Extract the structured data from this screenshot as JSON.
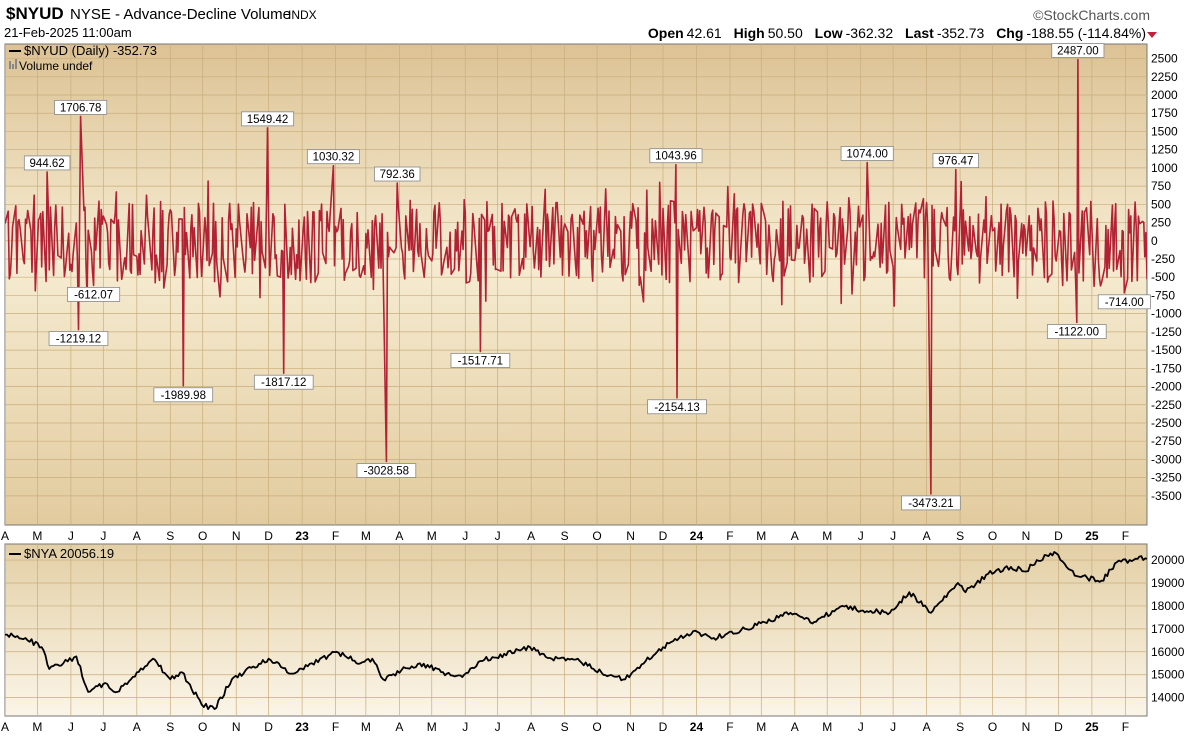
{
  "header": {
    "symbol": "$NYUD",
    "name": "NYSE - Advance-Decline Volume",
    "exchange": "INDX",
    "brand": "©StockCharts.com",
    "date": "21-Feb-2025 11:00am",
    "open_label": "Open",
    "open": "42.61",
    "high_label": "High",
    "high": "50.50",
    "low_label": "Low",
    "low": "-362.32",
    "last_label": "Last",
    "last": "-352.73",
    "chg_label": "Chg",
    "chg": "-188.55 (-114.84%)",
    "chg_color": "#c0203a"
  },
  "chart_data": [
    {
      "type": "line",
      "title": "$NYUD (Daily) -352.73",
      "subtitle": "Volume undef",
      "line_color": "#b22234",
      "ylim": [
        -3900,
        2700
      ],
      "yticks": [
        2500,
        2250,
        2000,
        1750,
        1500,
        1250,
        1000,
        750,
        500,
        250,
        0,
        -250,
        -500,
        -750,
        -1000,
        -1250,
        -1500,
        -1750,
        -2000,
        -2250,
        -2500,
        -2750,
        -3000,
        -3250,
        -3500
      ],
      "ytick_labels": [
        "2500",
        "2250",
        "2000",
        "1750",
        "1500",
        "1250",
        "1000",
        "750",
        "500",
        "250",
        "0",
        "-250",
        "-500",
        "-750",
        "-1000",
        "-1250",
        "-1500",
        "-1750",
        "-2000",
        "-2250",
        "-2500",
        "-2750",
        "-3000",
        "-3250",
        "-3500"
      ],
      "x_start": "2022-04-01",
      "x_end": "2025-02-21",
      "x_month_labels": [
        "A",
        "M",
        "J",
        "J",
        "A",
        "S",
        "O",
        "N",
        "D",
        "23",
        "F",
        "M",
        "A",
        "M",
        "J",
        "J",
        "A",
        "S",
        "O",
        "N",
        "D",
        "24",
        "F",
        "M",
        "A",
        "M",
        "J",
        "J",
        "A",
        "S",
        "O",
        "N",
        "D",
        "25",
        "F"
      ],
      "annotations": [
        {
          "date": "2022-05-10",
          "value": 944.62,
          "label": "944.62"
        },
        {
          "date": "2022-06-10",
          "value": 1706.78,
          "label": "1706.78"
        },
        {
          "date": "2022-06-08",
          "value": -1219.12,
          "label": "-1219.12"
        },
        {
          "date": "2022-06-22",
          "value": -612.07,
          "label": "-612.07"
        },
        {
          "date": "2022-09-13",
          "value": -1989.98,
          "label": "-1989.98"
        },
        {
          "date": "2022-11-30",
          "value": 1549.42,
          "label": "1549.42"
        },
        {
          "date": "2022-12-15",
          "value": -1817.12,
          "label": "-1817.12"
        },
        {
          "date": "2023-01-30",
          "value": 1030.32,
          "label": "1030.32"
        },
        {
          "date": "2023-03-20",
          "value": -3028.58,
          "label": "-3028.58"
        },
        {
          "date": "2023-03-30",
          "value": 792.36,
          "label": "792.36"
        },
        {
          "date": "2023-06-15",
          "value": -1517.71,
          "label": "-1517.71"
        },
        {
          "date": "2023-12-13",
          "value": 1043.96,
          "label": "1043.96"
        },
        {
          "date": "2023-12-14",
          "value": -2154.13,
          "label": "-2154.13"
        },
        {
          "date": "2024-06-07",
          "value": 1074.0,
          "label": "1074.00"
        },
        {
          "date": "2024-08-05",
          "value": -3473.21,
          "label": "-3473.21"
        },
        {
          "date": "2024-08-28",
          "value": 976.47,
          "label": "976.47"
        },
        {
          "date": "2024-12-18",
          "value": -1122.0,
          "label": "-1122.00"
        },
        {
          "date": "2024-12-19",
          "value": 2487.0,
          "label": "2487.00"
        },
        {
          "date": "2025-01-31",
          "value": -714.0,
          "label": "-714.00"
        }
      ]
    },
    {
      "type": "line",
      "title": "$NYA 20056.19",
      "line_color": "#000000",
      "ylim": [
        13200,
        20700
      ],
      "yticks": [
        20000,
        19000,
        18000,
        17000,
        16000,
        15000,
        14000
      ],
      "ytick_labels": [
        "20000",
        "19000",
        "18000",
        "17000",
        "16000",
        "15000",
        "14000"
      ],
      "x_start": "2022-04-01",
      "x_end": "2025-02-21",
      "x_month_labels": [
        "A",
        "M",
        "J",
        "J",
        "A",
        "S",
        "O",
        "N",
        "D",
        "23",
        "F",
        "M",
        "A",
        "M",
        "J",
        "J",
        "A",
        "S",
        "O",
        "N",
        "D",
        "24",
        "F",
        "M",
        "A",
        "M",
        "J",
        "J",
        "A",
        "S",
        "O",
        "N",
        "D",
        "25",
        "F"
      ],
      "series": [
        {
          "values": [
            {
              "x": "2022-04-01",
              "y": 16750
            },
            {
              "x": "2022-04-20",
              "y": 16600
            },
            {
              "x": "2022-05-05",
              "y": 16200
            },
            {
              "x": "2022-05-12",
              "y": 15250
            },
            {
              "x": "2022-05-25",
              "y": 15500
            },
            {
              "x": "2022-06-06",
              "y": 15800
            },
            {
              "x": "2022-06-17",
              "y": 14250
            },
            {
              "x": "2022-07-01",
              "y": 14600
            },
            {
              "x": "2022-07-14",
              "y": 14250
            },
            {
              "x": "2022-08-01",
              "y": 15100
            },
            {
              "x": "2022-08-16",
              "y": 15700
            },
            {
              "x": "2022-09-01",
              "y": 14800
            },
            {
              "x": "2022-09-12",
              "y": 15100
            },
            {
              "x": "2022-09-30",
              "y": 13700
            },
            {
              "x": "2022-10-12",
              "y": 13500
            },
            {
              "x": "2022-10-28",
              "y": 14800
            },
            {
              "x": "2022-11-15",
              "y": 15300
            },
            {
              "x": "2022-12-01",
              "y": 15700
            },
            {
              "x": "2022-12-22",
              "y": 15050
            },
            {
              "x": "2023-01-10",
              "y": 15500
            },
            {
              "x": "2023-02-02",
              "y": 16000
            },
            {
              "x": "2023-02-24",
              "y": 15500
            },
            {
              "x": "2023-03-07",
              "y": 15700
            },
            {
              "x": "2023-03-17",
              "y": 14800
            },
            {
              "x": "2023-04-03",
              "y": 15200
            },
            {
              "x": "2023-04-20",
              "y": 15500
            },
            {
              "x": "2023-05-15",
              "y": 15050
            },
            {
              "x": "2023-05-31",
              "y": 15000
            },
            {
              "x": "2023-06-15",
              "y": 15600
            },
            {
              "x": "2023-07-31",
              "y": 16200
            },
            {
              "x": "2023-08-20",
              "y": 15700
            },
            {
              "x": "2023-09-15",
              "y": 15600
            },
            {
              "x": "2023-10-05",
              "y": 15100
            },
            {
              "x": "2023-10-27",
              "y": 14800
            },
            {
              "x": "2023-11-15",
              "y": 15600
            },
            {
              "x": "2023-12-01",
              "y": 16200
            },
            {
              "x": "2023-12-29",
              "y": 16900
            },
            {
              "x": "2024-01-17",
              "y": 16600
            },
            {
              "x": "2024-02-15",
              "y": 17000
            },
            {
              "x": "2024-03-28",
              "y": 17700
            },
            {
              "x": "2024-04-19",
              "y": 17300
            },
            {
              "x": "2024-05-15",
              "y": 18000
            },
            {
              "x": "2024-06-03",
              "y": 17800
            },
            {
              "x": "2024-06-28",
              "y": 17700
            },
            {
              "x": "2024-07-16",
              "y": 18600
            },
            {
              "x": "2024-08-05",
              "y": 17700
            },
            {
              "x": "2024-08-30",
              "y": 19000
            },
            {
              "x": "2024-09-06",
              "y": 18600
            },
            {
              "x": "2024-09-27",
              "y": 19400
            },
            {
              "x": "2024-10-18",
              "y": 19700
            },
            {
              "x": "2024-11-01",
              "y": 19500
            },
            {
              "x": "2024-11-11",
              "y": 20000
            },
            {
              "x": "2024-11-29",
              "y": 20300
            },
            {
              "x": "2024-12-18",
              "y": 19300
            },
            {
              "x": "2025-01-10",
              "y": 19100
            },
            {
              "x": "2025-01-24",
              "y": 19900
            },
            {
              "x": "2025-02-05",
              "y": 20000
            },
            {
              "x": "2025-02-14",
              "y": 20150
            },
            {
              "x": "2025-02-21",
              "y": 20056.19
            }
          ]
        }
      ]
    }
  ]
}
